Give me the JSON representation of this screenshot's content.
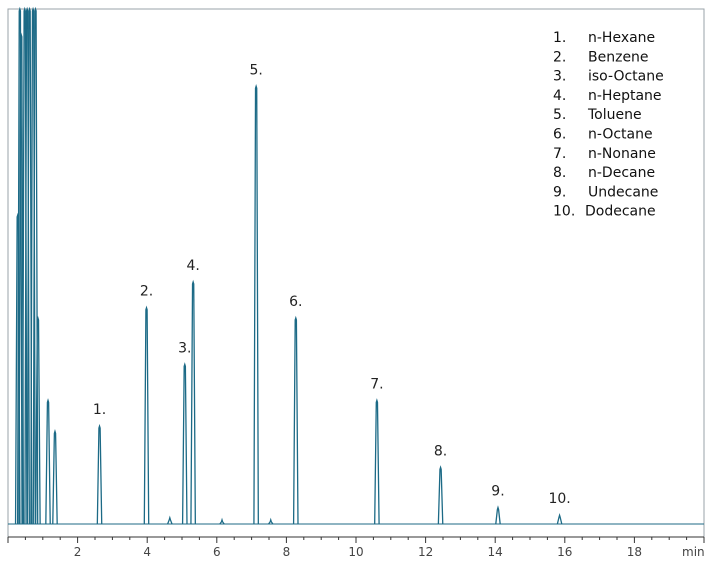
{
  "chart_data": {
    "type": "line",
    "xlabel": "min",
    "xlim": [
      0,
      20
    ],
    "ylim": [
      0,
      100
    ],
    "x_ticks": [
      2,
      4,
      6,
      8,
      10,
      12,
      14,
      16,
      18
    ],
    "x_tick_labels": [
      "2",
      "4",
      "6",
      "8",
      "10",
      "12",
      "14",
      "16",
      "18"
    ],
    "grid": false,
    "legend_placement": "top-right",
    "colors": {
      "trace": "#1c6a86",
      "axis": "#333333"
    },
    "solvent_peaks": [
      {
        "rt": 0.28,
        "height": 60
      },
      {
        "rt": 0.34,
        "height": 100
      },
      {
        "rt": 0.38,
        "height": 95
      },
      {
        "rt": 0.48,
        "height": 100
      },
      {
        "rt": 0.55,
        "height": 100
      },
      {
        "rt": 0.62,
        "height": 100
      },
      {
        "rt": 0.72,
        "height": 100
      },
      {
        "rt": 0.79,
        "height": 100
      },
      {
        "rt": 0.86,
        "height": 40
      },
      {
        "rt": 1.15,
        "height": 24
      },
      {
        "rt": 1.35,
        "height": 18
      }
    ],
    "peaks": [
      {
        "label": "1.",
        "name": "n-Hexane",
        "rt": 2.63,
        "height": 19
      },
      {
        "label": "2.",
        "name": "Benzene",
        "rt": 3.98,
        "height": 42
      },
      {
        "label": "3.",
        "name": "iso-Octane",
        "rt": 5.08,
        "height": 31
      },
      {
        "label": "4.",
        "name": "n-Heptane",
        "rt": 5.32,
        "height": 47
      },
      {
        "label": "5.",
        "name": "Toluene",
        "rt": 7.13,
        "height": 85
      },
      {
        "label": "6.",
        "name": "n-Octane",
        "rt": 8.27,
        "height": 40
      },
      {
        "label": "7.",
        "name": "n-Nonane",
        "rt": 10.6,
        "height": 24
      },
      {
        "label": "8.",
        "name": "n-Decane",
        "rt": 12.43,
        "height": 11
      },
      {
        "label": "9.",
        "name": "Undecane",
        "rt": 14.08,
        "height": 3.2
      },
      {
        "label": "10.",
        "name": "Dodecane",
        "rt": 15.85,
        "height": 1.7
      }
    ],
    "legend": [
      {
        "num": "1.",
        "name": "n-Hexane"
      },
      {
        "num": "2.",
        "name": "Benzene"
      },
      {
        "num": "3.",
        "name": "iso-Octane"
      },
      {
        "num": "4.",
        "name": "n-Heptane"
      },
      {
        "num": "5.",
        "name": "Toluene"
      },
      {
        "num": "6.",
        "name": "n-Octane"
      },
      {
        "num": "7.",
        "name": "n-Nonane"
      },
      {
        "num": "8.",
        "name": "n-Decane"
      },
      {
        "num": "9.",
        "name": "Undecane"
      },
      {
        "num": "10.",
        "name": "Dodecane"
      }
    ]
  }
}
